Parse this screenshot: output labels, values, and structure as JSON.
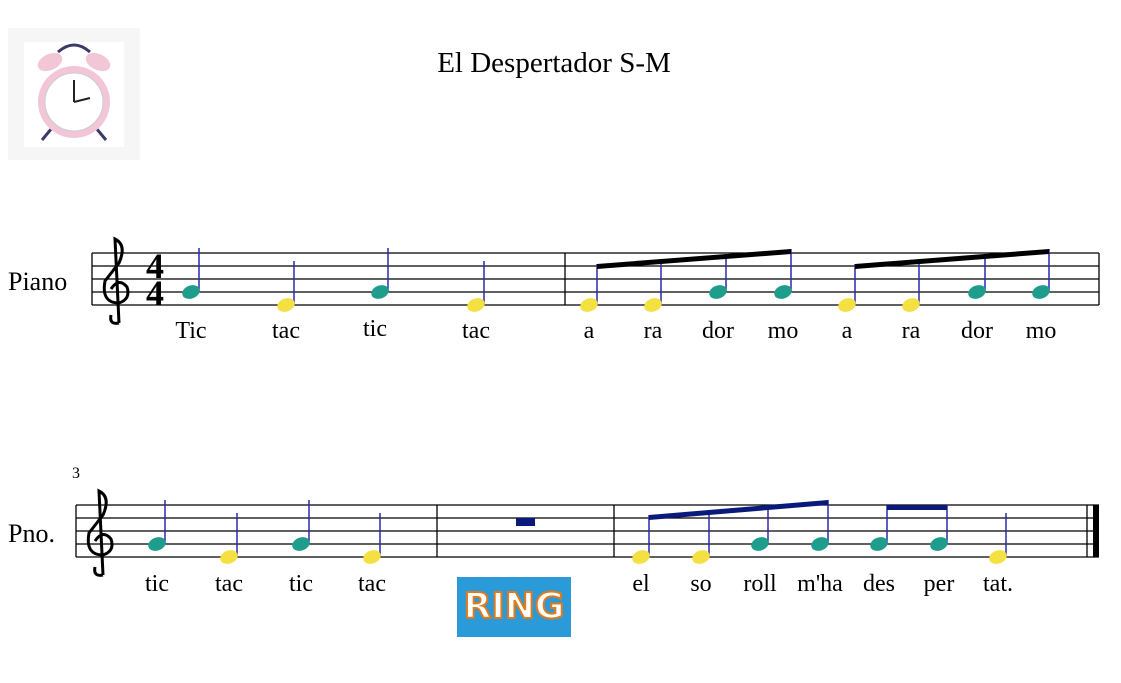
{
  "header": {
    "title": "El Despertador S-M"
  },
  "time_signature": {
    "top": 4,
    "bottom": 4
  },
  "systems": [
    {
      "instrument": "Piano",
      "lyrics": [
        "Tic",
        "tac",
        "tic",
        "tac",
        "a",
        "ra",
        "dor",
        "mo",
        "a",
        "ra",
        "dor",
        "mo"
      ]
    },
    {
      "measure_number": 3,
      "instrument": "Pno.",
      "lyrics": [
        "tic",
        "tac",
        "tic",
        "tac",
        "el",
        "so",
        "roll",
        "m'ha",
        "des",
        "per",
        "tat."
      ]
    }
  ],
  "image_text": "RING"
}
